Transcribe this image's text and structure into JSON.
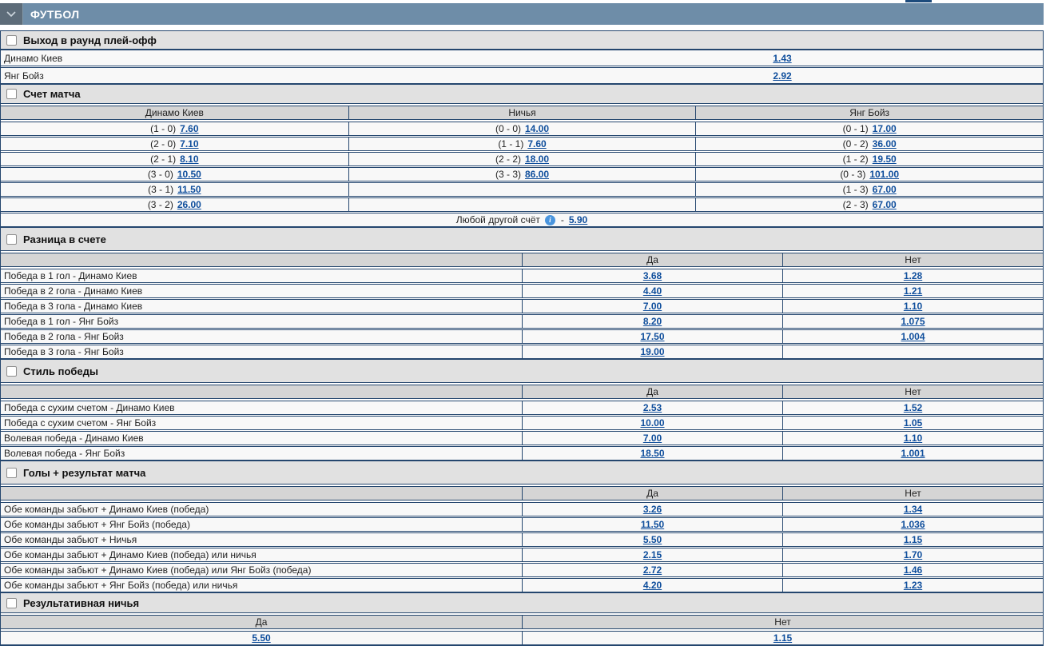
{
  "header": {
    "title": "ФУТБОЛ"
  },
  "outcome_columns": {
    "yes": "Да",
    "no": "Нет"
  },
  "colors": {
    "header_bar": "#6e8da8",
    "chevron_box": "#5d6c79",
    "table_border": "#24466e",
    "section_header_bg": "#e1e1e1",
    "column_header_bg": "#d5d5d5",
    "row_bg": "#f8f8f8",
    "odds_link": "#0f4e9c",
    "info_icon_bg": "#4a95de"
  },
  "sections": [
    {
      "id": "playoff",
      "title": "Выход в раунд плей-офф",
      "type": "simple",
      "rows": [
        {
          "label": "Динамо Киев",
          "odd": "1.43"
        },
        {
          "label": "Янг Бойз",
          "odd": "2.92"
        }
      ]
    },
    {
      "id": "match-score",
      "title": "Счет матча",
      "type": "score",
      "columns": [
        "Динамо Киев",
        "Ничья",
        "Янг Бойз"
      ],
      "rows": [
        [
          {
            "score": "(1 - 0)",
            "odd": "7.60"
          },
          {
            "score": "(0 - 0)",
            "odd": "14.00"
          },
          {
            "score": "(0 - 1)",
            "odd": "17.00"
          }
        ],
        [
          {
            "score": "(2 - 0)",
            "odd": "7.10"
          },
          {
            "score": "(1 - 1)",
            "odd": "7.60"
          },
          {
            "score": "(0 - 2)",
            "odd": "36.00"
          }
        ],
        [
          {
            "score": "(2 - 1)",
            "odd": "8.10"
          },
          {
            "score": "(2 - 2)",
            "odd": "18.00"
          },
          {
            "score": "(1 - 2)",
            "odd": "19.50"
          }
        ],
        [
          {
            "score": "(3 - 0)",
            "odd": "10.50"
          },
          {
            "score": "(3 - 3)",
            "odd": "86.00"
          },
          {
            "score": "(0 - 3)",
            "odd": "101.00"
          }
        ],
        [
          {
            "score": "(3 - 1)",
            "odd": "11.50"
          },
          null,
          {
            "score": "(1 - 3)",
            "odd": "67.00"
          }
        ],
        [
          {
            "score": "(3 - 2)",
            "odd": "26.00"
          },
          null,
          {
            "score": "(2 - 3)",
            "odd": "67.00"
          }
        ]
      ],
      "footer": {
        "label": "Любой другой счёт",
        "info": "i",
        "separator": "-",
        "odd": "5.90"
      }
    },
    {
      "id": "score-margin",
      "title": "Разница в счете",
      "type": "yesno",
      "rows": [
        {
          "label": "Победа в 1 гол - Динамо Киев",
          "yes": "3.68",
          "no": "1.28"
        },
        {
          "label": "Победа в 2 гола - Динамо Киев",
          "yes": "4.40",
          "no": "1.21"
        },
        {
          "label": "Победа в 3 гола - Динамо Киев",
          "yes": "7.00",
          "no": "1.10"
        },
        {
          "label": "Победа в 1 гол - Янг Бойз",
          "yes": "8.20",
          "no": "1.075"
        },
        {
          "label": "Победа в 2 гола - Янг Бойз",
          "yes": "17.50",
          "no": "1.004"
        },
        {
          "label": "Победа в 3 гола - Янг Бойз",
          "yes": "19.00",
          "no": null
        }
      ]
    },
    {
      "id": "win-style",
      "title": "Стиль победы",
      "type": "yesno",
      "rows": [
        {
          "label": "Победа с сухим счетом - Динамо Киев",
          "yes": "2.53",
          "no": "1.52"
        },
        {
          "label": "Победа с сухим счетом - Янг Бойз",
          "yes": "10.00",
          "no": "1.05"
        },
        {
          "label": "Волевая победа - Динамо Киев",
          "yes": "7.00",
          "no": "1.10"
        },
        {
          "label": "Волевая победа - Янг Бойз",
          "yes": "18.50",
          "no": "1.001"
        }
      ]
    },
    {
      "id": "goals-result",
      "title": "Голы + результат матча",
      "type": "yesno",
      "rows": [
        {
          "label": "Обе команды забьют + Динамо Киев (победа)",
          "yes": "3.26",
          "no": "1.34"
        },
        {
          "label": "Обе команды забьют + Янг Бойз (победа)",
          "yes": "11.50",
          "no": "1.036"
        },
        {
          "label": "Обе команды забьют + Ничья",
          "yes": "5.50",
          "no": "1.15"
        },
        {
          "label": "Обе команды забьют + Динамо Киев (победа) или ничья",
          "yes": "2.15",
          "no": "1.70"
        },
        {
          "label": "Обе команды забьют + Динамо Киев (победа) или Янг Бойз (победа)",
          "yes": "2.72",
          "no": "1.46"
        },
        {
          "label": "Обе команды забьют + Янг Бойз (победа) или ничья",
          "yes": "4.20",
          "no": "1.23"
        }
      ]
    },
    {
      "id": "score-draw",
      "title": "Результативная ничья",
      "type": "yesno-wide",
      "rows": [
        {
          "yes": "5.50",
          "no": "1.15"
        }
      ]
    }
  ]
}
